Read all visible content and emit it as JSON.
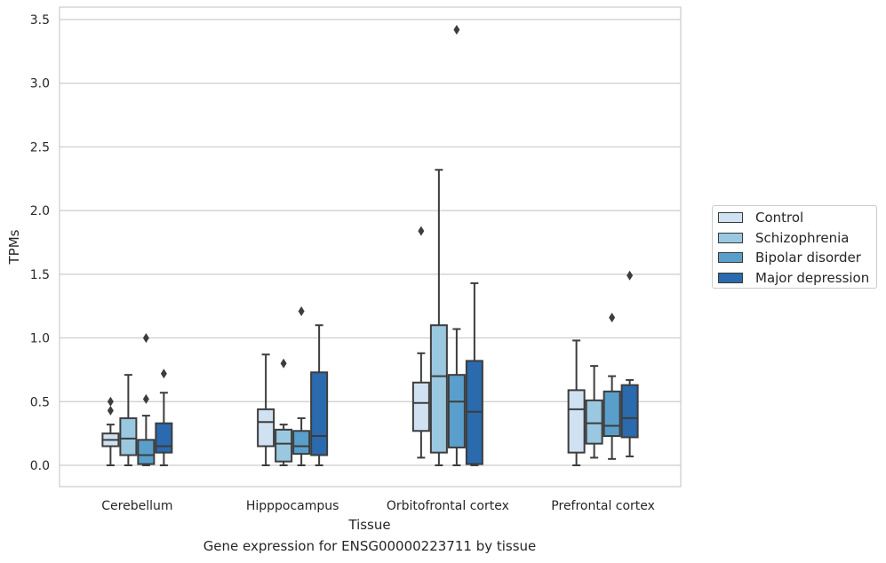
{
  "chart_data": {
    "type": "box",
    "title": "",
    "caption": "Gene expression for ENSG00000223711 by tissue",
    "xlabel": "Tissue",
    "ylabel": "TPMs",
    "ylim": [
      -0.17,
      3.6
    ],
    "yticks": [
      "0.0",
      "0.5",
      "1.0",
      "1.5",
      "2.0",
      "2.5",
      "3.0",
      "3.5"
    ],
    "ytick_values": [
      0,
      0.5,
      1.0,
      1.5,
      2.0,
      2.5,
      3.0,
      3.5
    ],
    "grid": "horizontal",
    "legend_position": "right",
    "categories": [
      "Cerebellum",
      "Hipppocampus",
      "Orbitofrontal cortex",
      "Prefrontal cortex"
    ],
    "series": [
      {
        "name": "Control",
        "color": "#d0e2f2",
        "boxes": [
          {
            "whisker_low": 0.0,
            "q1": 0.15,
            "median": 0.2,
            "q3": 0.25,
            "whisker_high": 0.32,
            "outliers": [
              0.43,
              0.5
            ]
          },
          {
            "whisker_low": 0.0,
            "q1": 0.15,
            "median": 0.34,
            "q3": 0.44,
            "whisker_high": 0.87,
            "outliers": []
          },
          {
            "whisker_low": 0.06,
            "q1": 0.27,
            "median": 0.49,
            "q3": 0.65,
            "whisker_high": 0.88,
            "outliers": [
              1.84
            ]
          },
          {
            "whisker_low": 0.0,
            "q1": 0.1,
            "median": 0.44,
            "q3": 0.59,
            "whisker_high": 0.98,
            "outliers": []
          }
        ]
      },
      {
        "name": "Schizophrenia",
        "color": "#9ac8e0",
        "boxes": [
          {
            "whisker_low": 0.0,
            "q1": 0.08,
            "median": 0.21,
            "q3": 0.37,
            "whisker_high": 0.71,
            "outliers": []
          },
          {
            "whisker_low": 0.0,
            "q1": 0.03,
            "median": 0.17,
            "q3": 0.28,
            "whisker_high": 0.32,
            "outliers": [
              0.8
            ]
          },
          {
            "whisker_low": 0.0,
            "q1": 0.1,
            "median": 0.7,
            "q3": 1.1,
            "whisker_high": 2.32,
            "outliers": []
          },
          {
            "whisker_low": 0.06,
            "q1": 0.17,
            "median": 0.33,
            "q3": 0.51,
            "whisker_high": 0.78,
            "outliers": []
          }
        ]
      },
      {
        "name": "Bipolar disorder",
        "color": "#5a9fcb",
        "boxes": [
          {
            "whisker_low": 0.0,
            "q1": 0.01,
            "median": 0.08,
            "q3": 0.2,
            "whisker_high": 0.39,
            "outliers": [
              0.52,
              1.0
            ]
          },
          {
            "whisker_low": 0.0,
            "q1": 0.09,
            "median": 0.15,
            "q3": 0.27,
            "whisker_high": 0.37,
            "outliers": [
              1.21
            ]
          },
          {
            "whisker_low": 0.0,
            "q1": 0.14,
            "median": 0.5,
            "q3": 0.71,
            "whisker_high": 1.07,
            "outliers": [
              3.42
            ]
          },
          {
            "whisker_low": 0.05,
            "q1": 0.23,
            "median": 0.31,
            "q3": 0.58,
            "whisker_high": 0.7,
            "outliers": [
              1.16
            ]
          }
        ]
      },
      {
        "name": "Major depression",
        "color": "#2a6aad",
        "boxes": [
          {
            "whisker_low": 0.0,
            "q1": 0.1,
            "median": 0.15,
            "q3": 0.33,
            "whisker_high": 0.57,
            "outliers": [
              0.72
            ]
          },
          {
            "whisker_low": 0.0,
            "q1": 0.08,
            "median": 0.23,
            "q3": 0.73,
            "whisker_high": 1.1,
            "outliers": []
          },
          {
            "whisker_low": 0.0,
            "q1": 0.01,
            "median": 0.42,
            "q3": 0.82,
            "whisker_high": 1.43,
            "outliers": []
          },
          {
            "whisker_low": 0.07,
            "q1": 0.22,
            "median": 0.37,
            "q3": 0.63,
            "whisker_high": 0.67,
            "outliers": [
              1.49
            ]
          }
        ]
      }
    ]
  }
}
